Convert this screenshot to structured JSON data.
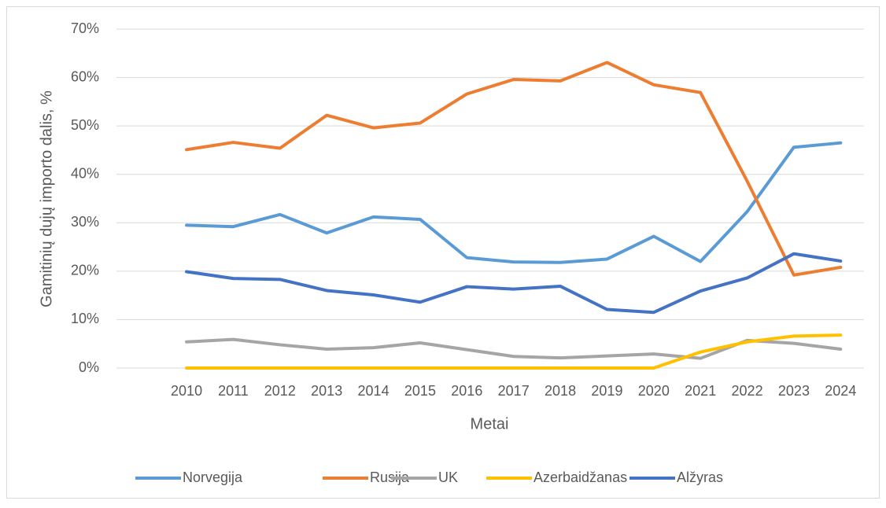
{
  "chart_data": {
    "type": "line",
    "x_label": "Metai",
    "y_label": "Gamitinių dujų importo dalis, %",
    "categories": [
      null,
      "2010",
      "2011",
      "2012",
      "2013",
      "2014",
      "2015",
      "2016",
      "2017",
      "2018",
      "2019",
      "2020",
      "2021",
      "2022",
      "2023",
      "2024"
    ],
    "series": [
      {
        "name": "Norvegija",
        "color": "#5b9bd5",
        "values": [
          null,
          29.5,
          29.2,
          31.7,
          27.9,
          31.2,
          30.7,
          22.8,
          21.9,
          21.8,
          22.5,
          27.2,
          22.0,
          32.3,
          45.6,
          46.5
        ]
      },
      {
        "name": "Rusija",
        "color": "#ed7d31",
        "values": [
          null,
          45.1,
          46.6,
          45.4,
          52.2,
          49.6,
          50.6,
          56.6,
          59.6,
          59.3,
          63.1,
          58.5,
          56.9,
          38.6,
          19.2,
          20.8
        ]
      },
      {
        "name": "UK",
        "color": "#a5a5a5",
        "values": [
          null,
          5.4,
          5.9,
          4.8,
          3.9,
          4.2,
          5.2,
          3.8,
          2.4,
          2.1,
          2.5,
          2.9,
          2.0,
          5.7,
          5.1,
          3.9
        ]
      },
      {
        "name": "Azerbaidžanas",
        "color": "#ffc000",
        "values": [
          null,
          0,
          0,
          0,
          0,
          0,
          0,
          0,
          0,
          0,
          0,
          0,
          3.3,
          5.4,
          6.6,
          6.8
        ]
      },
      {
        "name": "Alžyras",
        "color": "#4472c4",
        "values": [
          null,
          19.9,
          18.5,
          18.3,
          16.0,
          15.1,
          13.6,
          16.8,
          16.3,
          16.9,
          12.1,
          11.5,
          15.9,
          18.6,
          23.6,
          22.1
        ]
      }
    ],
    "ylim": [
      0,
      70
    ],
    "yticks": [
      {
        "value": 0,
        "label": "0%"
      },
      {
        "value": 10,
        "label": "10%"
      },
      {
        "value": 20,
        "label": "20%"
      },
      {
        "value": 30,
        "label": "30%"
      },
      {
        "value": 40,
        "label": "40%"
      },
      {
        "value": 50,
        "label": "50%"
      },
      {
        "value": 60,
        "label": "60%"
      },
      {
        "value": 70,
        "label": "70%"
      }
    ],
    "grid": true,
    "legend": "bottom"
  }
}
